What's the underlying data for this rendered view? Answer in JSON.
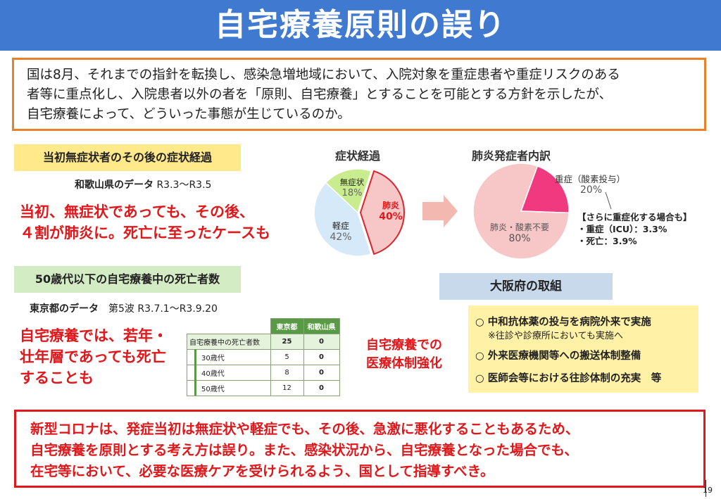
{
  "title": "自宅療養原則の誤り",
  "intro": {
    "line1": "国は8月、それまでの指針を転換し、感染急増地域において、入院対象を重症患者や重症リスクのある",
    "line2": "者等に重点化し、入院患者以外の者を「原則、自宅療養」とすることを可能とする方針を示したが、",
    "line3": "自宅療養によって、どういった事態が生じているのか。"
  },
  "section1": {
    "heading": "当初無症状者のその後の症状経過",
    "source_label": "和歌山県のデータ",
    "source_period": "R3.3〜R3.5",
    "highlight_line1": "当初、無症状であっても、その後、",
    "highlight_line2": "４割が肺炎に。死亡に至ったケースも"
  },
  "section2": {
    "heading": "50歳代以下の自宅療養中の死亡者数",
    "source_label": "東京都のデータ",
    "source_period": "第5波 R3.7.1〜R3.9.20",
    "highlight_line1": "自宅療養では、若年・",
    "highlight_line2": "壮年層であっても死亡",
    "highlight_line3": "することも"
  },
  "death_table": {
    "headers": [
      "東京都",
      "和歌山県"
    ],
    "total_label": "自宅療養中の死亡者数",
    "total": [
      "25",
      "0"
    ],
    "rows": [
      {
        "label": "30歳代",
        "tokyo": "5",
        "wakayama": "0"
      },
      {
        "label": "40歳代",
        "tokyo": "8",
        "wakayama": "0"
      },
      {
        "label": "50歳代",
        "tokyo": "12",
        "wakayama": "0"
      }
    ]
  },
  "charts": {
    "symptom_title": "症状経過",
    "pneumonia_title": "肺炎発症者内訳",
    "arrow_color": "#f3b8b0"
  },
  "chart_data": [
    {
      "type": "pie",
      "title": "症状経過",
      "slices": [
        {
          "label": "肺炎",
          "value": 40,
          "display": "40%",
          "color": "#f7c6c7"
        },
        {
          "label": "軽症",
          "value": 42,
          "display": "42%",
          "color": "#d6e9f8"
        },
        {
          "label": "無症状",
          "value": 18,
          "display": "18%",
          "color": "#c8ec8e"
        }
      ]
    },
    {
      "type": "pie",
      "title": "肺炎発症者内訳",
      "slices": [
        {
          "label": "重症（酸素投与）",
          "value": 20,
          "display": "20%",
          "color": "#f0397f"
        },
        {
          "label": "肺炎・酸素不要",
          "value": 80,
          "display": "80%",
          "color": "#f7c6c7"
        }
      ]
    }
  ],
  "severe_note": {
    "heading": "【さらに重症化する場合も】",
    "item1": "・重症（ICU）：3.3%",
    "item2": "・死亡：3.9%"
  },
  "osaka": {
    "heading": "大阪府の取組",
    "left_label_line1": "自宅療養での",
    "left_label_line2": "医療体制強化",
    "item1": "○ 中和抗体薬の投与を病院外来で実施",
    "item1_note": "※往診や診療所においても実施へ",
    "item2": "○ 外来医療機関等への搬送体制整備",
    "item3": "○ 医師会等における往診体制の充実　等"
  },
  "conclusion": {
    "line1": "新型コロナは、発症当初は無症状や軽症でも、その後、急激に悪化することもあるため、",
    "line2": "自宅療養を原則とする考え方は誤り。また、感染状況から、自宅療養となった場合でも、",
    "line3": "在宅等において、必要な医療ケアを受けられるよう、国として指導すべき。"
  },
  "page_number": "19"
}
